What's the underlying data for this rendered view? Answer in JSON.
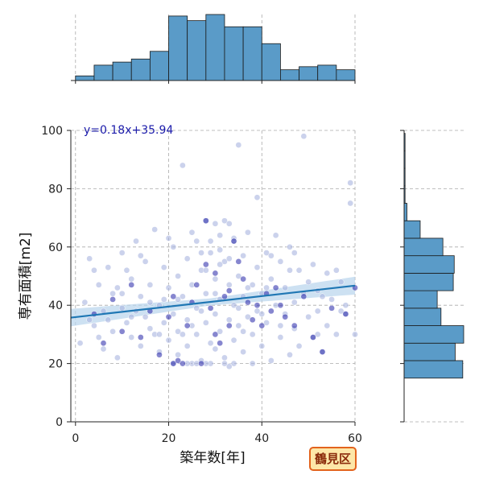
{
  "chart_data": {
    "type": "scatter",
    "xlabel": "築年数[年]",
    "ylabel": "専有面積[m2]",
    "xlim": [
      -1,
      60
    ],
    "ylim": [
      0,
      100
    ],
    "x_ticks": [
      0,
      20,
      40,
      60
    ],
    "y_ticks": [
      0,
      20,
      40,
      60,
      80,
      100
    ],
    "grid": true,
    "regression": {
      "slope": 0.18,
      "intercept": 35.94,
      "label": "y=0.18x+35.94"
    },
    "points": [
      [
        1,
        27
      ],
      [
        2,
        41
      ],
      [
        3,
        56
      ],
      [
        4,
        33
      ],
      [
        5,
        47
      ],
      [
        6,
        25
      ],
      [
        6,
        38
      ],
      [
        7,
        53
      ],
      [
        8,
        44
      ],
      [
        8,
        31
      ],
      [
        9,
        22
      ],
      [
        10,
        58
      ],
      [
        10,
        39
      ],
      [
        11,
        34
      ],
      [
        12,
        49
      ],
      [
        12,
        29
      ],
      [
        13,
        62
      ],
      [
        14,
        43
      ],
      [
        14,
        26
      ],
      [
        15,
        55
      ],
      [
        15,
        36
      ],
      [
        16,
        47
      ],
      [
        17,
        30
      ],
      [
        17,
        66
      ],
      [
        18,
        40
      ],
      [
        18,
        24
      ],
      [
        19,
        53
      ],
      [
        19,
        34
      ],
      [
        20,
        46
      ],
      [
        20,
        28
      ],
      [
        21,
        60
      ],
      [
        21,
        37
      ],
      [
        21,
        20
      ],
      [
        22,
        50
      ],
      [
        22,
        31
      ],
      [
        22,
        23
      ],
      [
        23,
        88
      ],
      [
        23,
        43
      ],
      [
        24,
        56
      ],
      [
        24,
        35
      ],
      [
        24,
        26
      ],
      [
        25,
        47
      ],
      [
        25,
        20
      ],
      [
        26,
        62
      ],
      [
        26,
        39
      ],
      [
        26,
        30
      ],
      [
        27,
        52
      ],
      [
        27,
        21
      ],
      [
        28,
        69
      ],
      [
        28,
        44
      ],
      [
        28,
        34
      ],
      [
        29,
        58
      ],
      [
        29,
        27
      ],
      [
        29,
        20
      ],
      [
        30,
        49
      ],
      [
        30,
        37
      ],
      [
        30,
        25
      ],
      [
        31,
        64
      ],
      [
        31,
        42
      ],
      [
        31,
        31
      ],
      [
        32,
        55
      ],
      [
        32,
        22
      ],
      [
        33,
        47
      ],
      [
        33,
        35
      ],
      [
        33,
        19
      ],
      [
        34,
        62
      ],
      [
        34,
        40
      ],
      [
        34,
        28
      ],
      [
        35,
        95
      ],
      [
        35,
        50
      ],
      [
        35,
        33
      ],
      [
        36,
        57
      ],
      [
        36,
        43
      ],
      [
        36,
        24
      ],
      [
        37,
        65
      ],
      [
        37,
        36
      ],
      [
        38,
        47
      ],
      [
        38,
        30
      ],
      [
        38,
        20
      ],
      [
        39,
        77
      ],
      [
        39,
        53
      ],
      [
        39,
        38
      ],
      [
        40,
        44
      ],
      [
        40,
        26
      ],
      [
        41,
        58
      ],
      [
        41,
        34
      ],
      [
        42,
        49
      ],
      [
        42,
        21
      ],
      [
        43,
        64
      ],
      [
        43,
        40
      ],
      [
        44,
        55
      ],
      [
        44,
        29
      ],
      [
        45,
        46
      ],
      [
        45,
        37
      ],
      [
        46,
        23
      ],
      [
        46,
        60
      ],
      [
        47,
        41
      ],
      [
        47,
        32
      ],
      [
        48,
        52
      ],
      [
        48,
        26
      ],
      [
        49,
        44
      ],
      [
        49,
        98
      ],
      [
        50,
        36
      ],
      [
        51,
        54
      ],
      [
        51,
        29
      ],
      [
        52,
        45
      ],
      [
        52,
        38
      ],
      [
        53,
        24
      ],
      [
        54,
        51
      ],
      [
        54,
        33
      ],
      [
        55,
        42
      ],
      [
        56,
        30
      ],
      [
        57,
        48
      ],
      [
        58,
        37
      ],
      [
        59,
        82
      ],
      [
        59,
        75
      ],
      [
        60,
        30
      ],
      [
        3,
        35
      ],
      [
        5,
        29
      ],
      [
        9,
        46
      ],
      [
        11,
        52
      ],
      [
        13,
        38
      ],
      [
        16,
        32
      ],
      [
        19,
        42
      ],
      [
        23,
        30
      ],
      [
        27,
        38
      ],
      [
        31,
        54
      ],
      [
        36,
        31
      ],
      [
        41,
        46
      ],
      [
        46,
        52
      ],
      [
        52,
        30
      ],
      [
        57,
        38
      ],
      [
        4,
        52
      ],
      [
        7,
        35
      ],
      [
        10,
        44
      ],
      [
        12,
        36
      ],
      [
        14,
        57
      ],
      [
        16,
        41
      ],
      [
        18,
        30
      ],
      [
        20,
        63
      ],
      [
        22,
        42
      ],
      [
        25,
        33
      ],
      [
        28,
        52
      ],
      [
        30,
        44
      ],
      [
        33,
        56
      ],
      [
        35,
        39
      ],
      [
        37,
        46
      ],
      [
        40,
        37
      ],
      [
        42,
        57
      ],
      [
        44,
        33
      ],
      [
        47,
        58
      ],
      [
        50,
        48
      ],
      [
        53,
        43
      ],
      [
        56,
        52
      ],
      [
        58,
        40
      ],
      [
        24,
        20
      ],
      [
        26,
        20
      ],
      [
        28,
        20
      ],
      [
        32,
        20
      ],
      [
        34,
        20
      ],
      [
        30,
        68
      ],
      [
        32,
        69
      ],
      [
        34,
        63
      ],
      [
        25,
        65
      ],
      [
        27,
        58
      ],
      [
        29,
        62
      ],
      [
        31,
        59
      ],
      [
        33,
        68
      ]
    ],
    "dark_points": [
      [
        4,
        37
      ],
      [
        6,
        27
      ],
      [
        8,
        42
      ],
      [
        10,
        31
      ],
      [
        12,
        47
      ],
      [
        14,
        29
      ],
      [
        16,
        38
      ],
      [
        18,
        23
      ],
      [
        20,
        36
      ],
      [
        21,
        20
      ],
      [
        22,
        21
      ],
      [
        23,
        20
      ],
      [
        24,
        33
      ],
      [
        25,
        41
      ],
      [
        26,
        47
      ],
      [
        27,
        20
      ],
      [
        28,
        69
      ],
      [
        28,
        54
      ],
      [
        29,
        39
      ],
      [
        30,
        51
      ],
      [
        31,
        27
      ],
      [
        32,
        43
      ],
      [
        33,
        45
      ],
      [
        34,
        62
      ],
      [
        35,
        55
      ],
      [
        36,
        49
      ],
      [
        37,
        41
      ],
      [
        38,
        35
      ],
      [
        39,
        40
      ],
      [
        40,
        33
      ],
      [
        41,
        44
      ],
      [
        42,
        38
      ],
      [
        43,
        46
      ],
      [
        44,
        40
      ],
      [
        45,
        36
      ],
      [
        47,
        33
      ],
      [
        49,
        43
      ],
      [
        51,
        29
      ],
      [
        53,
        24
      ],
      [
        55,
        39
      ],
      [
        58,
        37
      ],
      [
        60,
        46
      ],
      [
        21,
        43
      ],
      [
        30,
        30
      ],
      [
        33,
        33
      ]
    ],
    "hist_x": {
      "bins": [
        0,
        4,
        8,
        12,
        16,
        20,
        24,
        28,
        32,
        36,
        40,
        44,
        48,
        52,
        56,
        60
      ],
      "counts": [
        3,
        10,
        12,
        14,
        19,
        42,
        39,
        43,
        35,
        35,
        24,
        7,
        9,
        10,
        7,
        5
      ]
    },
    "hist_y": {
      "bins": [
        15,
        21,
        27,
        33,
        39,
        45,
        51,
        57,
        63,
        69,
        75,
        81,
        87,
        93,
        99
      ],
      "counts": [
        62,
        54,
        63,
        39,
        35,
        52,
        53,
        41,
        17,
        3,
        1,
        1,
        1,
        1
      ]
    },
    "annotation": "鶴見区"
  },
  "colors": {
    "point": "#a8b4e0",
    "point_dark": "#2323a8",
    "line": "#1f77b4",
    "ci": "#b8d4ec",
    "bar": "#5a9bc8",
    "bar_edge": "#1a1a1a"
  }
}
